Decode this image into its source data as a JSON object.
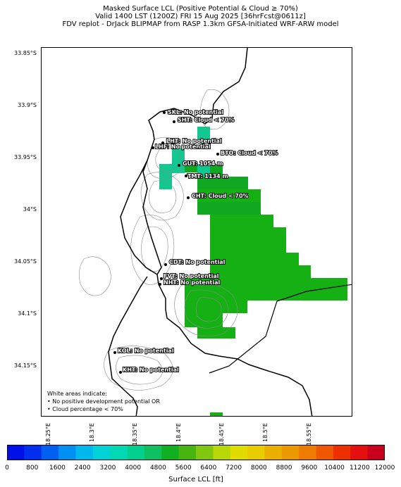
{
  "title": {
    "line1": "Masked Surface LCL (Positive Potential & Cloud ≥ 70%)",
    "line2": "Valid 1400 LST (1200Z) FRI 15 Aug 2025 [36hrFcst@0611z]",
    "line3": "FDV replot - DrJack BLIPMAP from RASP 1.3km GFSA-Initiated WRF-ARW model"
  },
  "lat_labels": [
    "33.85°S",
    "33.9°S",
    "33.95°S",
    "34°S",
    "34.05°S",
    "34.1°S",
    "34.15°S"
  ],
  "lon_labels": [
    "18.25°E",
    "18.3°E",
    "18.35°E",
    "18.4°E",
    "18.45°E",
    "18.5°E",
    "18.55°E"
  ],
  "sites": [
    {
      "code": "SKL",
      "text": "SKL: No potential"
    },
    {
      "code": "SHT",
      "text": "SHT: Cloud < 70%"
    },
    {
      "code": "LHT",
      "text": "LHT: No potential"
    },
    {
      "code": "LHF",
      "text": "LHF: No potential"
    },
    {
      "code": "BTO",
      "text": "BTO: Cloud < 70%"
    },
    {
      "code": "GUT",
      "text": "GUT: 1054 m"
    },
    {
      "code": "TMT",
      "text": "TMT: 1134 m"
    },
    {
      "code": "CHT",
      "text": "CHT: Cloud < 70%"
    },
    {
      "code": "CDT",
      "text": "CDT: No potential"
    },
    {
      "code": "FVT",
      "text": "FVT: No potential"
    },
    {
      "code": "NHT",
      "text": "NHT: No potential"
    },
    {
      "code": "KOL",
      "text": "KOL: No potential"
    },
    {
      "code": "KHT",
      "text": "KHT: No potential"
    }
  ],
  "note": {
    "line1": "White areas indicate:",
    "line2": "• No positive development potential OR",
    "line3": "• Cloud percentage < 70%"
  },
  "colorbar": {
    "title": "Surface LCL [ft]",
    "labels": [
      "0",
      "800",
      "1600",
      "2400",
      "3200",
      "4000",
      "4800",
      "5600",
      "6400",
      "7200",
      "8000",
      "8800",
      "9600",
      "10400",
      "11200",
      "12000"
    ],
    "colors": [
      "#0010e8",
      "#0030ee",
      "#0060f2",
      "#0090f4",
      "#00b8ee",
      "#00d2d8",
      "#00d8b4",
      "#00d08c",
      "#10c060",
      "#10b020",
      "#48b410",
      "#80c810",
      "#b8d808",
      "#e0dc00",
      "#e8cc00",
      "#eab000",
      "#ec9800",
      "#ee7c00",
      "#ef5800",
      "#ee3000",
      "#e41010",
      "#c8001e"
    ]
  },
  "legend_colors": {
    "lcl_teal": "#10c890",
    "lcl_green_dark": "#10a820",
    "lcl_green": "#14b014"
  }
}
